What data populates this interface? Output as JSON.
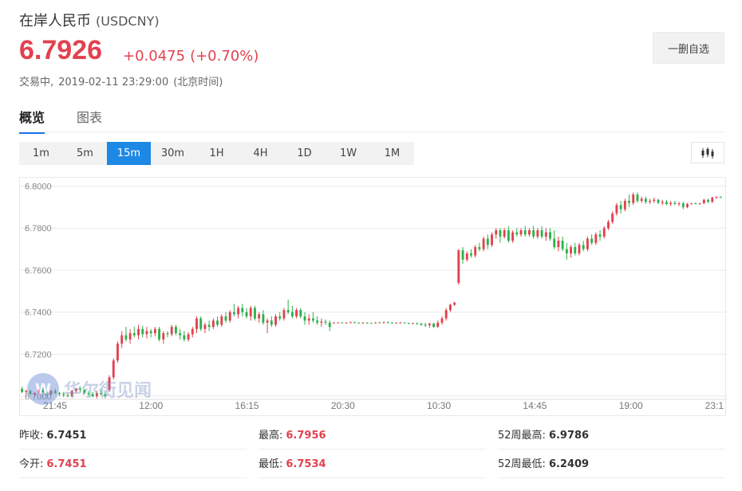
{
  "header": {
    "name": "在岸人民币",
    "code": "(USDCNY)",
    "price": "6.7926",
    "change": "+0.0475",
    "change_pct": "(+0.70%)",
    "status": "交易中,",
    "time": "2019-02-11 23:29:00",
    "tz": "(北京时间)",
    "watch_label": "一删自选"
  },
  "tabs": [
    {
      "label": "概览",
      "active": true
    },
    {
      "label": "图表",
      "active": false
    }
  ],
  "periods": [
    {
      "label": "1m",
      "active": false
    },
    {
      "label": "5m",
      "active": false
    },
    {
      "label": "15m",
      "active": true
    },
    {
      "label": "30m",
      "active": false
    },
    {
      "label": "1H",
      "active": false
    },
    {
      "label": "4H",
      "active": false
    },
    {
      "label": "1D",
      "active": false
    },
    {
      "label": "1W",
      "active": false
    },
    {
      "label": "1M",
      "active": false
    }
  ],
  "chart_type_icon": "candlestick-icon",
  "watermark": {
    "logo": "W",
    "text": "华尔街见闻"
  },
  "colors": {
    "up": "#e2414f",
    "down": "#2bb24c",
    "accent": "#1e88e5"
  },
  "chart_data": {
    "type": "candlestick",
    "y_ticks": [
      "6.8000",
      "6.7800",
      "6.7600",
      "6.7400",
      "6.7200",
      "6.7000"
    ],
    "ylim": [
      6.6985,
      6.804
    ],
    "x_ticks": [
      "21:45",
      "12:00",
      "16:15",
      "20:30",
      "10:30",
      "14:45",
      "19:00",
      "23:1"
    ],
    "grid": true,
    "series": [
      [
        6.7035,
        6.7045,
        6.7015,
        6.702
      ],
      [
        6.702,
        6.703,
        6.701,
        6.7025
      ],
      [
        6.7025,
        6.703,
        6.7005,
        6.701
      ],
      [
        6.701,
        6.702,
        6.7,
        6.7015
      ],
      [
        6.7015,
        6.7035,
        6.701,
        6.703
      ],
      [
        6.703,
        6.704,
        6.7015,
        6.702
      ],
      [
        6.702,
        6.703,
        6.7005,
        6.701
      ],
      [
        6.701,
        6.703,
        6.7005,
        6.7025
      ],
      [
        6.7025,
        6.7035,
        6.701,
        6.7015
      ],
      [
        6.7015,
        6.702,
        6.7,
        6.701
      ],
      [
        6.701,
        6.702,
        6.6995,
        6.7005
      ],
      [
        6.7005,
        6.7015,
        6.6995,
        6.7
      ],
      [
        6.7,
        6.703,
        6.6995,
        6.7025
      ],
      [
        6.7025,
        6.704,
        6.7015,
        6.7035
      ],
      [
        6.7035,
        6.7045,
        6.702,
        6.703
      ],
      [
        6.703,
        6.7035,
        6.701,
        6.7015
      ],
      [
        6.7015,
        6.7025,
        6.7,
        6.701
      ],
      [
        6.701,
        6.702,
        6.6995,
        6.7
      ],
      [
        6.7,
        6.7025,
        6.699,
        6.7015
      ],
      [
        6.7015,
        6.703,
        6.7005,
        6.701
      ],
      [
        6.701,
        6.702,
        6.699,
        6.7
      ],
      [
        6.703,
        6.71,
        6.7025,
        6.709
      ],
      [
        6.709,
        6.718,
        6.708,
        6.717
      ],
      [
        6.717,
        6.726,
        6.716,
        6.725
      ],
      [
        6.725,
        6.731,
        6.723,
        6.729
      ],
      [
        6.729,
        6.733,
        6.726,
        6.727
      ],
      [
        6.727,
        6.732,
        6.725,
        6.73
      ],
      [
        6.73,
        6.733,
        6.728,
        6.729
      ],
      [
        6.729,
        6.734,
        6.727,
        6.732
      ],
      [
        6.732,
        6.7335,
        6.728,
        6.7295
      ],
      [
        6.7295,
        6.733,
        6.7275,
        6.731
      ],
      [
        6.731,
        6.732,
        6.728,
        6.73
      ],
      [
        6.73,
        6.733,
        6.7285,
        6.732
      ],
      [
        6.732,
        6.733,
        6.726,
        6.727
      ],
      [
        6.727,
        6.731,
        6.725,
        6.73
      ],
      [
        6.73,
        6.731,
        6.728,
        6.7295
      ],
      [
        6.7295,
        6.734,
        6.7285,
        6.733
      ],
      [
        6.733,
        6.734,
        6.729,
        6.73
      ],
      [
        6.73,
        6.732,
        6.727,
        6.729
      ],
      [
        6.729,
        6.731,
        6.726,
        6.727
      ],
      [
        6.727,
        6.7305,
        6.726,
        6.7295
      ],
      [
        6.7295,
        6.733,
        6.728,
        6.732
      ],
      [
        6.732,
        6.738,
        6.73,
        6.737
      ],
      [
        6.737,
        6.738,
        6.731,
        6.732
      ],
      [
        6.732,
        6.735,
        6.73,
        6.734
      ],
      [
        6.734,
        6.736,
        6.731,
        6.733
      ],
      [
        6.733,
        6.737,
        6.732,
        6.736
      ],
      [
        6.736,
        6.738,
        6.733,
        6.734
      ],
      [
        6.734,
        6.739,
        6.733,
        6.738
      ],
      [
        6.738,
        6.74,
        6.735,
        6.736
      ],
      [
        6.736,
        6.741,
        6.735,
        6.74
      ],
      [
        6.74,
        6.744,
        6.738,
        6.739
      ],
      [
        6.739,
        6.743,
        6.737,
        6.742
      ],
      [
        6.742,
        6.744,
        6.738,
        6.74
      ],
      [
        6.74,
        6.742,
        6.737,
        6.738
      ],
      [
        6.738,
        6.743,
        6.736,
        6.742
      ],
      [
        6.742,
        6.743,
        6.736,
        6.737
      ],
      [
        6.737,
        6.74,
        6.735,
        6.739
      ],
      [
        6.739,
        6.741,
        6.734,
        6.735
      ],
      [
        6.735,
        6.737,
        6.73,
        6.736
      ],
      [
        6.736,
        6.738,
        6.733,
        6.734
      ],
      [
        6.734,
        6.739,
        6.733,
        6.738
      ],
      [
        6.738,
        6.74,
        6.736,
        6.737
      ],
      [
        6.737,
        6.742,
        6.736,
        6.741
      ],
      [
        6.741,
        6.746,
        6.739,
        6.74
      ],
      [
        6.74,
        6.743,
        6.737,
        6.738
      ],
      [
        6.738,
        6.742,
        6.737,
        6.741
      ],
      [
        6.741,
        6.742,
        6.737,
        6.738
      ],
      [
        6.738,
        6.74,
        6.734,
        6.736
      ],
      [
        6.736,
        6.739,
        6.734,
        6.737
      ],
      [
        6.737,
        6.74,
        6.735,
        6.736
      ],
      [
        6.736,
        6.738,
        6.734,
        6.735
      ],
      [
        6.735,
        6.737,
        6.733,
        6.7355
      ],
      [
        6.7355,
        6.7365,
        6.734,
        6.735
      ],
      [
        6.735,
        6.736,
        6.731,
        6.733
      ],
      [
        6.735,
        6.7352,
        6.7348,
        6.735
      ],
      [
        6.735,
        6.7352,
        6.7348,
        6.7351
      ],
      [
        6.7351,
        6.7353,
        6.7348,
        6.735
      ],
      [
        6.735,
        6.7352,
        6.7348,
        6.735
      ],
      [
        6.735,
        6.7355,
        6.7348,
        6.7352
      ],
      [
        6.7352,
        6.7354,
        6.7348,
        6.735
      ],
      [
        6.735,
        6.7352,
        6.7347,
        6.7349
      ],
      [
        6.7349,
        6.7352,
        6.7346,
        6.735
      ],
      [
        6.735,
        6.7352,
        6.7347,
        6.7349
      ],
      [
        6.7349,
        6.735,
        6.7346,
        6.7348
      ],
      [
        6.7348,
        6.7352,
        6.7346,
        6.7351
      ],
      [
        6.7351,
        6.7354,
        6.7348,
        6.735
      ],
      [
        6.735,
        6.7355,
        6.7347,
        6.7352
      ],
      [
        6.7352,
        6.7356,
        6.7348,
        6.735
      ],
      [
        6.735,
        6.7352,
        6.7345,
        6.7348
      ],
      [
        6.7348,
        6.7351,
        6.7345,
        6.735
      ],
      [
        6.735,
        6.7353,
        6.7347,
        6.7351
      ],
      [
        6.7351,
        6.7352,
        6.7346,
        6.7348
      ],
      [
        6.7348,
        6.735,
        6.7344,
        6.7346
      ],
      [
        6.7346,
        6.7349,
        6.7343,
        6.7348
      ],
      [
        6.7348,
        6.735,
        6.734,
        6.7345
      ],
      [
        6.7345,
        6.735,
        6.7335,
        6.734
      ],
      [
        6.734,
        6.735,
        6.733,
        6.7338
      ],
      [
        6.7338,
        6.735,
        6.7325,
        6.7345
      ],
      [
        6.7345,
        6.735,
        6.7325,
        6.733
      ],
      [
        6.733,
        6.736,
        6.7325,
        6.735
      ],
      [
        6.735,
        6.738,
        6.734,
        6.737
      ],
      [
        6.737,
        6.742,
        6.736,
        6.741
      ],
      [
        6.741,
        6.744,
        6.74,
        6.7435
      ],
      [
        6.7435,
        6.745,
        6.743,
        6.7445
      ],
      [
        6.754,
        6.77,
        6.753,
        6.7695
      ],
      [
        6.7695,
        6.771,
        6.763,
        6.765
      ],
      [
        6.765,
        6.769,
        6.764,
        6.768
      ],
      [
        6.768,
        6.77,
        6.766,
        6.767
      ],
      [
        6.767,
        6.772,
        6.766,
        6.771
      ],
      [
        6.771,
        6.773,
        6.769,
        6.77
      ],
      [
        6.77,
        6.776,
        6.769,
        6.775
      ],
      [
        6.775,
        6.777,
        6.77,
        6.772
      ],
      [
        6.772,
        6.778,
        6.771,
        6.777
      ],
      [
        6.777,
        6.78,
        6.775,
        6.779
      ],
      [
        6.779,
        6.78,
        6.773,
        6.776
      ],
      [
        6.776,
        6.78,
        6.775,
        6.779
      ],
      [
        6.779,
        6.781,
        6.773,
        6.774
      ],
      [
        6.774,
        6.779,
        6.773,
        6.778
      ],
      [
        6.778,
        6.78,
        6.776,
        6.777
      ],
      [
        6.777,
        6.78,
        6.776,
        6.779
      ],
      [
        6.779,
        6.781,
        6.776,
        6.777
      ],
      [
        6.777,
        6.78,
        6.776,
        6.779
      ],
      [
        6.779,
        6.781,
        6.775,
        6.776
      ],
      [
        6.776,
        6.78,
        6.775,
        6.779
      ],
      [
        6.779,
        6.781,
        6.775,
        6.776
      ],
      [
        6.776,
        6.78,
        6.774,
        6.778
      ],
      [
        6.778,
        6.78,
        6.774,
        6.775
      ],
      [
        6.775,
        6.779,
        6.77,
        6.771
      ],
      [
        6.771,
        6.776,
        6.769,
        6.774
      ],
      [
        6.774,
        6.776,
        6.769,
        6.77
      ],
      [
        6.77,
        6.773,
        6.765,
        6.768
      ],
      [
        6.768,
        6.772,
        6.766,
        6.771
      ],
      [
        6.771,
        6.773,
        6.767,
        6.768
      ],
      [
        6.768,
        6.773,
        6.767,
        6.772
      ],
      [
        6.772,
        6.774,
        6.769,
        6.77
      ],
      [
        6.77,
        6.776,
        6.769,
        6.775
      ],
      [
        6.775,
        6.777,
        6.772,
        6.773
      ],
      [
        6.773,
        6.778,
        6.772,
        6.777
      ],
      [
        6.777,
        6.779,
        6.774,
        6.776
      ],
      [
        6.776,
        6.781,
        6.775,
        6.78
      ],
      [
        6.78,
        6.784,
        6.779,
        6.783
      ],
      [
        6.783,
        6.788,
        6.782,
        6.787
      ],
      [
        6.787,
        6.792,
        6.786,
        6.791
      ],
      [
        6.791,
        6.793,
        6.787,
        6.789
      ],
      [
        6.789,
        6.794,
        6.788,
        6.793
      ],
      [
        6.793,
        6.796,
        6.79,
        6.792
      ],
      [
        6.792,
        6.797,
        6.791,
        6.796
      ],
      [
        6.796,
        6.797,
        6.792,
        6.793
      ],
      [
        6.793,
        6.795,
        6.792,
        6.794
      ],
      [
        6.794,
        6.795,
        6.7915,
        6.7925
      ],
      [
        6.7925,
        6.794,
        6.7915,
        6.793
      ],
      [
        6.793,
        6.7945,
        6.792,
        6.7935
      ],
      [
        6.7935,
        6.794,
        6.7915,
        6.792
      ],
      [
        6.792,
        6.7935,
        6.791,
        6.7925
      ],
      [
        6.7925,
        6.7935,
        6.791,
        6.7915
      ],
      [
        6.7915,
        6.793,
        6.7905,
        6.792
      ],
      [
        6.792,
        6.793,
        6.791,
        6.7915
      ],
      [
        6.7915,
        6.7925,
        6.7905,
        6.7918
      ],
      [
        6.7918,
        6.7925,
        6.789,
        6.79
      ],
      [
        6.79,
        6.792,
        6.7895,
        6.7915
      ],
      [
        6.7915,
        6.792,
        6.7912,
        6.7918
      ],
      [
        6.7918,
        6.7922,
        6.7914,
        6.7916
      ],
      [
        6.7916,
        6.792,
        6.7912,
        6.7918
      ],
      [
        6.7918,
        6.794,
        6.7916,
        6.7935
      ],
      [
        6.7935,
        6.794,
        6.792,
        6.7925
      ],
      [
        6.7925,
        6.795,
        6.792,
        6.7945
      ],
      [
        6.7945,
        6.7952,
        6.794,
        6.7948
      ],
      [
        6.7948,
        6.7952,
        6.7944,
        6.7946
      ]
    ]
  },
  "stats": {
    "prev_close_label": "昨收:",
    "prev_close": "6.7451",
    "high_label": "最高:",
    "high": "6.7956",
    "w52_high_label": "52周最高:",
    "w52_high": "6.9786",
    "open_label": "今开:",
    "open": "6.7451",
    "low_label": "最低:",
    "low": "6.7534",
    "w52_low_label": "52周最低:",
    "w52_low": "6.2409"
  }
}
